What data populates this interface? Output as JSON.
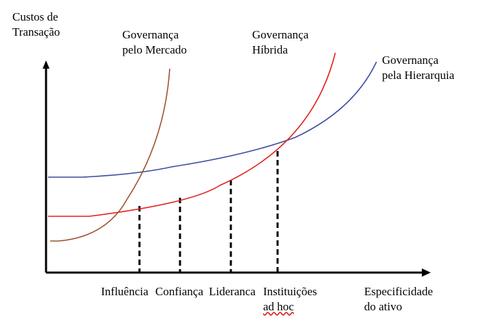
{
  "axes": {
    "y_label": [
      "Custos de",
      "Transação"
    ],
    "x_label": [
      "Especificidade",
      "do ativo"
    ]
  },
  "curves": {
    "market": {
      "label": [
        "Governança",
        "pelo Mercado"
      ],
      "color": "#a0522d"
    },
    "hybrid": {
      "label": [
        "Governança",
        "Híbrida"
      ],
      "color": "#e0201a"
    },
    "hierarchy": {
      "label": [
        "Governança",
        "pela Hierarquia"
      ],
      "color": "#3a4c9c"
    }
  },
  "boundaries": [
    {
      "label": [
        "Influência"
      ]
    },
    {
      "label": [
        "Confiança"
      ]
    },
    {
      "label": [
        "Lideranca"
      ]
    },
    {
      "label": [
        "Instituições",
        "ad hoc"
      ]
    }
  ],
  "colors": {
    "axis": "#000000",
    "dashed": "#000000"
  }
}
